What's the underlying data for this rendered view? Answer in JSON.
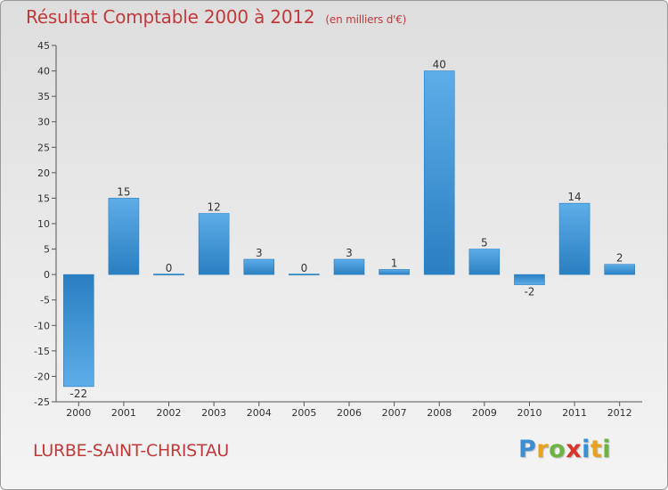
{
  "title": "Résultat Comptable 2000 à 2012",
  "subtitle": "(en milliers d'€)",
  "commune": "LURBE-SAINT-CHRISTAU",
  "logo": {
    "letters": [
      "P",
      "r",
      "o",
      "x",
      "i",
      "t",
      "i"
    ],
    "colors": [
      "#3a8fd4",
      "#e8a21f",
      "#6db33f",
      "#d9342b",
      "#3a8fd4",
      "#e8a21f",
      "#6db33f"
    ]
  },
  "colors": {
    "bar_light": "#5dade8",
    "bar_dark": "#2a7fc1",
    "title": "#c13a3a"
  },
  "chart_data": {
    "type": "bar",
    "title": "Résultat Comptable 2000 à 2012",
    "subtitle": "(en milliers d'€)",
    "categories": [
      "2000",
      "2001",
      "2002",
      "2003",
      "2004",
      "2005",
      "2006",
      "2007",
      "2008",
      "2009",
      "2010",
      "2011",
      "2012"
    ],
    "values": [
      -22,
      15,
      0,
      12,
      3,
      0,
      3,
      1,
      40,
      5,
      -2,
      14,
      2
    ],
    "ylim": [
      -25,
      45
    ],
    "yticks": [
      -25,
      -20,
      -15,
      -10,
      -5,
      0,
      5,
      10,
      15,
      20,
      25,
      30,
      35,
      40,
      45
    ],
    "xlabel": "",
    "ylabel": "",
    "grid": false,
    "legend": "none"
  }
}
